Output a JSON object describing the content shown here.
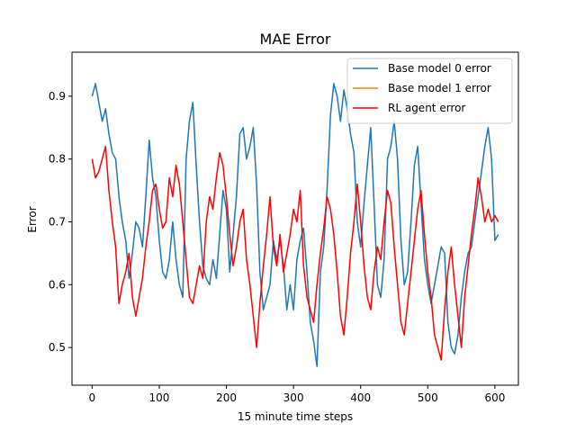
{
  "chart_data": {
    "type": "line",
    "title": "MAE Error",
    "xlabel": "15 minute time steps",
    "ylabel": "Error",
    "xlim": [
      -30,
      635
    ],
    "ylim": [
      0.44,
      0.97
    ],
    "xticks": [
      0,
      100,
      200,
      300,
      400,
      500,
      600
    ],
    "yticks": [
      0.5,
      0.6,
      0.7,
      0.8,
      0.9
    ],
    "grid": false,
    "legend_position": "top-right",
    "series": [
      {
        "name": "Base model 0 error",
        "color": "#1f77b4",
        "x": [
          0,
          5,
          10,
          15,
          20,
          25,
          30,
          35,
          40,
          45,
          50,
          55,
          60,
          65,
          70,
          75,
          80,
          85,
          90,
          95,
          100,
          105,
          110,
          115,
          120,
          125,
          130,
          135,
          140,
          145,
          150,
          155,
          160,
          165,
          170,
          175,
          180,
          185,
          190,
          195,
          200,
          205,
          210,
          215,
          220,
          225,
          230,
          235,
          240,
          245,
          250,
          255,
          260,
          265,
          270,
          275,
          280,
          285,
          290,
          295,
          300,
          305,
          310,
          315,
          320,
          325,
          330,
          335,
          340,
          345,
          350,
          355,
          360,
          365,
          370,
          375,
          380,
          385,
          390,
          395,
          400,
          405,
          410,
          415,
          420,
          425,
          430,
          435,
          440,
          445,
          450,
          455,
          460,
          465,
          470,
          475,
          480,
          485,
          490,
          495,
          500,
          505,
          510,
          515,
          520,
          525,
          530,
          535,
          540,
          545,
          550,
          555,
          560,
          565,
          570,
          575,
          580,
          585,
          590,
          595,
          600,
          605
        ],
        "values": [
          0.9,
          0.92,
          0.89,
          0.86,
          0.88,
          0.84,
          0.81,
          0.8,
          0.74,
          0.7,
          0.67,
          0.61,
          0.65,
          0.7,
          0.69,
          0.66,
          0.74,
          0.83,
          0.77,
          0.74,
          0.67,
          0.62,
          0.61,
          0.64,
          0.7,
          0.64,
          0.6,
          0.58,
          0.8,
          0.86,
          0.89,
          0.79,
          0.7,
          0.63,
          0.61,
          0.6,
          0.64,
          0.61,
          0.68,
          0.75,
          0.72,
          0.62,
          0.68,
          0.74,
          0.84,
          0.85,
          0.8,
          0.82,
          0.85,
          0.76,
          0.62,
          0.56,
          0.58,
          0.6,
          0.67,
          0.64,
          0.67,
          0.63,
          0.56,
          0.6,
          0.56,
          0.64,
          0.67,
          0.69,
          0.62,
          0.54,
          0.51,
          0.47,
          0.62,
          0.66,
          0.75,
          0.87,
          0.92,
          0.9,
          0.86,
          0.91,
          0.88,
          0.84,
          0.81,
          0.7,
          0.66,
          0.73,
          0.79,
          0.85,
          0.73,
          0.6,
          0.58,
          0.64,
          0.8,
          0.82,
          0.86,
          0.8,
          0.67,
          0.6,
          0.62,
          0.7,
          0.79,
          0.82,
          0.73,
          0.64,
          0.6,
          0.57,
          0.6,
          0.63,
          0.66,
          0.65,
          0.54,
          0.5,
          0.49,
          0.52,
          0.58,
          0.62,
          0.65,
          0.66,
          0.7,
          0.74,
          0.78,
          0.82,
          0.85,
          0.8,
          0.67,
          0.68
        ]
      },
      {
        "name": "Base model 1 error",
        "color": "#ff7f0e",
        "x": [],
        "values": []
      },
      {
        "name": "RL agent error",
        "color": "#ff0000",
        "x": [
          0,
          5,
          10,
          15,
          20,
          25,
          30,
          35,
          40,
          45,
          50,
          55,
          60,
          65,
          70,
          75,
          80,
          85,
          90,
          95,
          100,
          105,
          110,
          115,
          120,
          125,
          130,
          135,
          140,
          145,
          150,
          155,
          160,
          165,
          170,
          175,
          180,
          185,
          190,
          195,
          200,
          205,
          210,
          215,
          220,
          225,
          230,
          235,
          240,
          245,
          250,
          255,
          260,
          265,
          270,
          275,
          280,
          285,
          290,
          295,
          300,
          305,
          310,
          315,
          320,
          325,
          330,
          335,
          340,
          345,
          350,
          355,
          360,
          365,
          370,
          375,
          380,
          385,
          390,
          395,
          400,
          405,
          410,
          415,
          420,
          425,
          430,
          435,
          440,
          445,
          450,
          455,
          460,
          465,
          470,
          475,
          480,
          485,
          490,
          495,
          500,
          505,
          510,
          515,
          520,
          525,
          530,
          535,
          540,
          545,
          550,
          555,
          560,
          565,
          570,
          575,
          580,
          585,
          590,
          595,
          600,
          605
        ],
        "values": [
          0.8,
          0.77,
          0.78,
          0.8,
          0.82,
          0.75,
          0.7,
          0.66,
          0.57,
          0.6,
          0.62,
          0.65,
          0.58,
          0.55,
          0.58,
          0.61,
          0.66,
          0.7,
          0.75,
          0.76,
          0.72,
          0.69,
          0.7,
          0.77,
          0.74,
          0.79,
          0.76,
          0.7,
          0.64,
          0.58,
          0.57,
          0.6,
          0.63,
          0.61,
          0.7,
          0.74,
          0.72,
          0.77,
          0.81,
          0.79,
          0.74,
          0.68,
          0.63,
          0.66,
          0.7,
          0.72,
          0.64,
          0.6,
          0.55,
          0.5,
          0.57,
          0.63,
          0.68,
          0.74,
          0.66,
          0.63,
          0.68,
          0.62,
          0.65,
          0.68,
          0.72,
          0.7,
          0.75,
          0.63,
          0.58,
          0.56,
          0.54,
          0.6,
          0.65,
          0.69,
          0.74,
          0.72,
          0.68,
          0.62,
          0.55,
          0.52,
          0.58,
          0.65,
          0.7,
          0.76,
          0.7,
          0.63,
          0.58,
          0.56,
          0.62,
          0.66,
          0.64,
          0.7,
          0.75,
          0.73,
          0.66,
          0.6,
          0.54,
          0.52,
          0.57,
          0.62,
          0.67,
          0.72,
          0.75,
          0.68,
          0.62,
          0.58,
          0.52,
          0.5,
          0.48,
          0.56,
          0.62,
          0.66,
          0.6,
          0.55,
          0.5,
          0.58,
          0.63,
          0.68,
          0.72,
          0.77,
          0.74,
          0.7,
          0.72,
          0.7,
          0.71,
          0.7
        ]
      }
    ]
  }
}
